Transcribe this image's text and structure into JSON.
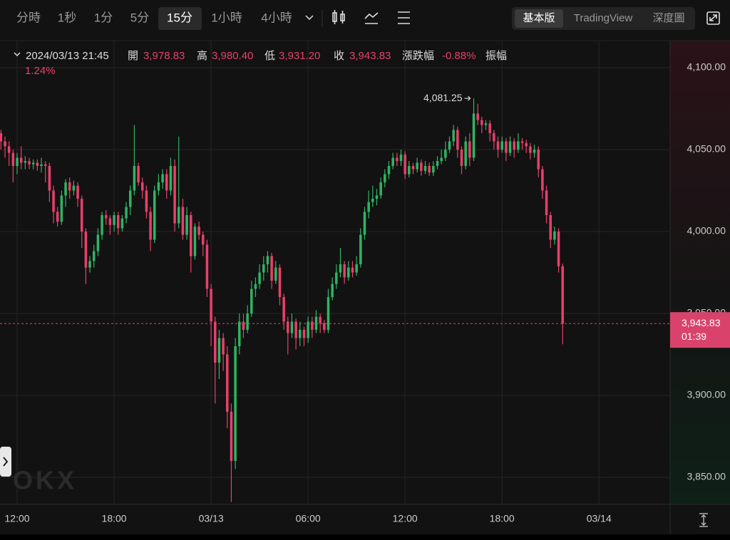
{
  "toolbar": {
    "intervals": [
      "分時",
      "1秒",
      "1分",
      "5分",
      "15分",
      "1小時",
      "4小時"
    ],
    "active_interval": "15分",
    "views": [
      "基本版",
      "TradingView",
      "深度圖"
    ],
    "active_view": "基本版"
  },
  "chart_data": {
    "type": "candlestick",
    "legend": {
      "time": "2024/03/13 21:45",
      "fields": [
        {
          "name": "開",
          "value": "3,978.83"
        },
        {
          "name": "高",
          "value": "3,980.40"
        },
        {
          "name": "低",
          "value": "3,931.20"
        },
        {
          "name": "收",
          "value": "3,943.83"
        },
        {
          "name": "漲跌幅",
          "value": "-0.88%"
        },
        {
          "name": "振幅",
          "value": "1.24%"
        }
      ]
    },
    "up_color": "#2fb463",
    "down_color": "#e8406c",
    "candles": [
      [
        4060,
        4062,
        4050,
        4055
      ],
      [
        4055,
        4058,
        4045,
        4052
      ],
      [
        4052,
        4055,
        4040,
        4048
      ],
      [
        4048,
        4050,
        4030,
        4040
      ],
      [
        4040,
        4048,
        4035,
        4045
      ],
      [
        4045,
        4052,
        4038,
        4042
      ],
      [
        4042,
        4046,
        4038,
        4043
      ],
      [
        4043,
        4045,
        4038,
        4041
      ],
      [
        4041,
        4044,
        4038,
        4042
      ],
      [
        4042,
        4044,
        4037,
        4040
      ],
      [
        4040,
        4045,
        4036,
        4041
      ],
      [
        4041,
        4043,
        4030,
        4040
      ],
      [
        4040,
        4042,
        4018,
        4025
      ],
      [
        4025,
        4028,
        4005,
        4012
      ],
      [
        4012,
        4015,
        4003,
        4006
      ],
      [
        4006,
        4025,
        4004,
        4022
      ],
      [
        4022,
        4032,
        4015,
        4030
      ],
      [
        4030,
        4033,
        4020,
        4025
      ],
      [
        4025,
        4031,
        4022,
        4028
      ],
      [
        4028,
        4030,
        4015,
        4020
      ],
      [
        4020,
        4022,
        3990,
        4000
      ],
      [
        4000,
        4002,
        3968,
        3978
      ],
      [
        3978,
        3985,
        3975,
        3982
      ],
      [
        3982,
        3992,
        3978,
        3988
      ],
      [
        3988,
        4002,
        3985,
        3998
      ],
      [
        3998,
        4012,
        3995,
        4010
      ],
      [
        4010,
        4013,
        4004,
        4008
      ],
      [
        4008,
        4010,
        3998,
        4004
      ],
      [
        4004,
        4012,
        4000,
        4010
      ],
      [
        4010,
        4012,
        3998,
        4002
      ],
      [
        4002,
        4010,
        4000,
        4008
      ],
      [
        4008,
        4018,
        4005,
        4015
      ],
      [
        4015,
        4028,
        4010,
        4025
      ],
      [
        4025,
        4065,
        4022,
        4040
      ],
      [
        4040,
        4042,
        4028,
        4030
      ],
      [
        4030,
        4033,
        4020,
        4025
      ],
      [
        4025,
        4028,
        4008,
        4012
      ],
      [
        4012,
        4015,
        3988,
        3995
      ],
      [
        3995,
        4028,
        3993,
        4025
      ],
      [
        4025,
        4035,
        4022,
        4030
      ],
      [
        4030,
        4038,
        4026,
        4035
      ],
      [
        4035,
        4038,
        4020,
        4025
      ],
      [
        4025,
        4045,
        4022,
        4040
      ],
      [
        4040,
        4044,
        4000,
        4005
      ],
      [
        4005,
        4058,
        4002,
        4015
      ],
      [
        4015,
        4020,
        3995,
        3998
      ],
      [
        3998,
        4015,
        3995,
        4010
      ],
      [
        4010,
        4012,
        3975,
        3985
      ],
      [
        3985,
        4005,
        3983,
        4003
      ],
      [
        4003,
        4006,
        3995,
        3998
      ],
      [
        3998,
        4000,
        3985,
        3992
      ],
      [
        3992,
        3995,
        3960,
        3965
      ],
      [
        3965,
        3968,
        3930,
        3945
      ],
      [
        3945,
        3948,
        3895,
        3920
      ],
      [
        3920,
        3940,
        3910,
        3935
      ],
      [
        3935,
        3938,
        3915,
        3925
      ],
      [
        3925,
        3930,
        3880,
        3890
      ],
      [
        3890,
        3895,
        3835,
        3860
      ],
      [
        3860,
        3935,
        3855,
        3930
      ],
      [
        3930,
        3950,
        3925,
        3945
      ],
      [
        3945,
        3950,
        3935,
        3940
      ],
      [
        3940,
        3955,
        3938,
        3950
      ],
      [
        3950,
        3970,
        3948,
        3965
      ],
      [
        3965,
        3972,
        3960,
        3968
      ],
      [
        3968,
        3980,
        3965,
        3975
      ],
      [
        3975,
        3985,
        3970,
        3980
      ],
      [
        3980,
        3988,
        3975,
        3985
      ],
      [
        3985,
        3987,
        3965,
        3970
      ],
      [
        3970,
        3982,
        3968,
        3978
      ],
      [
        3978,
        3980,
        3955,
        3960
      ],
      [
        3960,
        3962,
        3940,
        3945
      ],
      [
        3945,
        3948,
        3925,
        3938
      ],
      [
        3938,
        3950,
        3935,
        3945
      ],
      [
        3945,
        3947,
        3928,
        3935
      ],
      [
        3935,
        3945,
        3930,
        3940
      ],
      [
        3940,
        3942,
        3930,
        3935
      ],
      [
        3935,
        3948,
        3932,
        3945
      ],
      [
        3945,
        3948,
        3935,
        3940
      ],
      [
        3940,
        3952,
        3938,
        3948
      ],
      [
        3948,
        3950,
        3938,
        3944
      ],
      [
        3944,
        3946,
        3938,
        3940
      ],
      [
        3940,
        3965,
        3938,
        3960
      ],
      [
        3960,
        3972,
        3958,
        3968
      ],
      [
        3968,
        3980,
        3965,
        3975
      ],
      [
        3975,
        3990,
        3972,
        3980
      ],
      [
        3980,
        3982,
        3968,
        3972
      ],
      [
        3972,
        3982,
        3970,
        3978
      ],
      [
        3978,
        3982,
        3972,
        3975
      ],
      [
        3975,
        3985,
        3973,
        3980
      ],
      [
        3980,
        4002,
        3978,
        3998
      ],
      [
        3998,
        4015,
        3995,
        4012
      ],
      [
        4012,
        4025,
        4008,
        4018
      ],
      [
        4018,
        4028,
        4015,
        4020
      ],
      [
        4020,
        4026,
        4016,
        4022
      ],
      [
        4022,
        4033,
        4020,
        4030
      ],
      [
        4030,
        4038,
        4027,
        4035
      ],
      [
        4035,
        4043,
        4032,
        4040
      ],
      [
        4040,
        4048,
        4038,
        4045
      ],
      [
        4045,
        4048,
        4040,
        4043
      ],
      [
        4043,
        4050,
        4040,
        4047
      ],
      [
        4047,
        4049,
        4032,
        4035
      ],
      [
        4035,
        4043,
        4033,
        4040
      ],
      [
        4040,
        4042,
        4035,
        4038
      ],
      [
        4038,
        4045,
        4036,
        4042
      ],
      [
        4042,
        4044,
        4034,
        4037
      ],
      [
        4037,
        4043,
        4035,
        4040
      ],
      [
        4040,
        4042,
        4034,
        4036
      ],
      [
        4036,
        4043,
        4034,
        4040
      ],
      [
        4040,
        4046,
        4038,
        4043
      ],
      [
        4043,
        4050,
        4041,
        4045
      ],
      [
        4045,
        4055,
        4043,
        4050
      ],
      [
        4050,
        4058,
        4048,
        4055
      ],
      [
        4055,
        4065,
        4052,
        4062
      ],
      [
        4062,
        4064,
        4045,
        4050
      ],
      [
        4050,
        4052,
        4035,
        4040
      ],
      [
        4040,
        4058,
        4038,
        4055
      ],
      [
        4055,
        4060,
        4040,
        4045
      ],
      [
        4045,
        4081.25,
        4043,
        4072
      ],
      [
        4072,
        4078,
        4065,
        4068
      ],
      [
        4068,
        4070,
        4060,
        4065
      ],
      [
        4065,
        4068,
        4062,
        4066
      ],
      [
        4066,
        4068,
        4055,
        4060
      ],
      [
        4060,
        4062,
        4050,
        4055
      ],
      [
        4055,
        4058,
        4045,
        4050
      ],
      [
        4050,
        4058,
        4048,
        4055
      ],
      [
        4055,
        4057,
        4043,
        4048
      ],
      [
        4048,
        4058,
        4046,
        4055
      ],
      [
        4055,
        4057,
        4045,
        4050
      ],
      [
        4050,
        4060,
        4048,
        4055
      ],
      [
        4055,
        4057,
        4050,
        4054
      ],
      [
        4054,
        4056,
        4048,
        4052
      ],
      [
        4052,
        4054,
        4044,
        4048
      ],
      [
        4048,
        4053,
        4045,
        4050
      ],
      [
        4050,
        4052,
        4033,
        4038
      ],
      [
        4038,
        4040,
        4020,
        4025
      ],
      [
        4025,
        4028,
        4005,
        4010
      ],
      [
        4010,
        4012,
        3990,
        3995
      ],
      [
        3995,
        4003,
        3992,
        4000
      ],
      [
        4000,
        4002,
        3975,
        3978.83
      ],
      [
        3978.83,
        3980.4,
        3931.2,
        3943.83
      ]
    ],
    "high_annotation": {
      "value": 4081.25,
      "label": "4,081.25"
    },
    "last_price": {
      "value": 3943.83,
      "label": "3,943.83",
      "countdown": "01:39"
    },
    "ylim": [
      3833.5,
      4116.5
    ],
    "yticks": [
      {
        "value": 3850,
        "label": "3,850.00"
      },
      {
        "value": 3900,
        "label": "3,900.00"
      },
      {
        "value": 3950,
        "label": "3,950.00"
      },
      {
        "value": 4000,
        "label": "4,000.00"
      },
      {
        "value": 4050,
        "label": "4,050.00"
      },
      {
        "value": 4100,
        "label": "4,100.00"
      }
    ],
    "xlim": [
      -0.24,
      165.6
    ],
    "xticks": [
      {
        "value": 4,
        "label": "12:00"
      },
      {
        "value": 28,
        "label": "18:00"
      },
      {
        "value": 52,
        "label": "03/13"
      },
      {
        "value": 76,
        "label": "06:00"
      },
      {
        "value": 100,
        "label": "12:00"
      },
      {
        "value": 124,
        "label": "18:00"
      },
      {
        "value": 148,
        "label": "03/14"
      }
    ],
    "grid": true,
    "watermark": "OKX"
  }
}
